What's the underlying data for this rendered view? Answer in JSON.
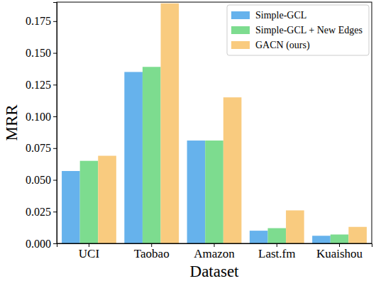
{
  "chart_data": {
    "type": "bar",
    "x_label": "Dataset",
    "y_label": "MRR",
    "categories": [
      "UCI",
      "Taobao",
      "Amazon",
      "Last.fm",
      "Kuaishou"
    ],
    "series": [
      {
        "name": "Simple-GCL",
        "color": "#66b2ec",
        "values": [
          0.057,
          0.135,
          0.081,
          0.01,
          0.006
        ]
      },
      {
        "name": "Simple-GCL + New Edges",
        "color": "#7ddc8f",
        "values": [
          0.065,
          0.139,
          0.081,
          0.012,
          0.007
        ]
      },
      {
        "name": "GACN (ours)",
        "color": "#f9cb7f",
        "values": [
          0.069,
          0.189,
          0.115,
          0.026,
          0.013
        ]
      }
    ],
    "ylim": [
      0,
      0.19
    ],
    "yticks": [
      {
        "value": 0,
        "label": "0.000"
      },
      {
        "value": 0.025,
        "label": "0.025"
      },
      {
        "value": 0.05,
        "label": "0.050"
      },
      {
        "value": 0.075,
        "label": "0.075"
      },
      {
        "value": 0.1,
        "label": "0.100"
      },
      {
        "value": 0.125,
        "label": "0.125"
      },
      {
        "value": 0.15,
        "label": "0.150"
      },
      {
        "value": 0.175,
        "label": "0.175"
      }
    ],
    "legend": "upper right",
    "grid": false
  }
}
